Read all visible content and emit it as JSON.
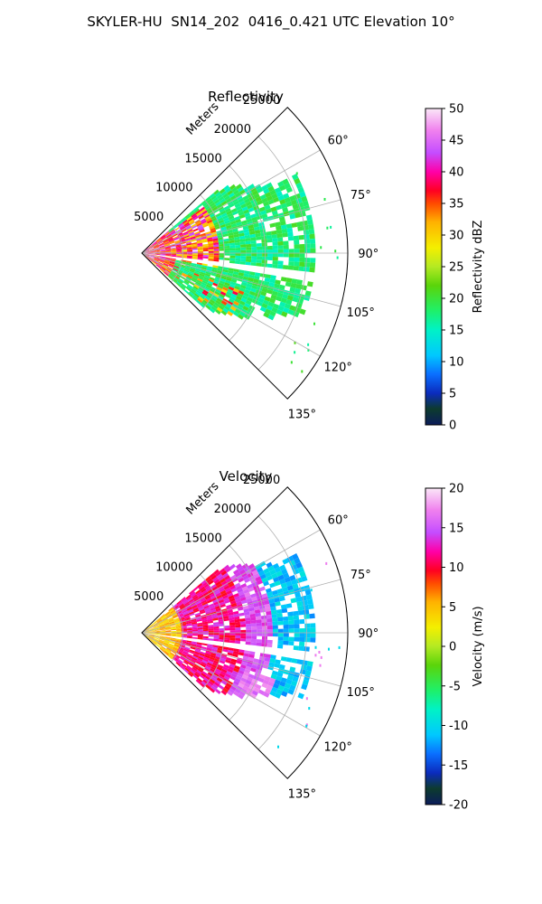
{
  "figure": {
    "title": "SKYLER-HU  SN14_202  0416_0.421 UTC Elevation 10°"
  },
  "chart_data": [
    {
      "type": "heatmap",
      "subtype": "polar-ppi-sector",
      "title": "Reflectivity",
      "range_axis_label": "Meters",
      "range_ticks": [
        5000,
        10000,
        15000,
        20000,
        25000
      ],
      "range_max": 25000,
      "azimuth_ticks": [
        "60°",
        "75°",
        "90°",
        "105°",
        "120°",
        "135°"
      ],
      "azimuth_range_deg": [
        45,
        135
      ],
      "grid": true,
      "colorbar": {
        "label": "Reflectivity dBZ",
        "min": 0,
        "max": 50,
        "ticks": [
          0,
          5,
          10,
          15,
          20,
          25,
          30,
          35,
          40,
          45,
          50
        ]
      },
      "dominant_values": "mostly 15–22 dBZ across the sector; 30–45 dBZ near radar (azimuth 55–100°, range < 8000 m); gap along ~95–100° azimuth"
    },
    {
      "type": "heatmap",
      "subtype": "polar-ppi-sector",
      "title": "Velocity",
      "range_axis_label": "Meters",
      "range_ticks": [
        5000,
        10000,
        15000,
        20000,
        25000
      ],
      "range_max": 25000,
      "azimuth_ticks": [
        "60°",
        "75°",
        "90°",
        "105°",
        "120°",
        "135°"
      ],
      "azimuth_range_deg": [
        45,
        135
      ],
      "grid": true,
      "colorbar": {
        "label": "Velocity (m/s)",
        "min": -20,
        "max": 20,
        "ticks": [
          -20,
          -15,
          -10,
          -5,
          0,
          5,
          10,
          15,
          20
        ]
      },
      "dominant_values": "+3 to +6 m/s near radar, +10 to +14 m/s at 5000–12000 m, -8 to -12 m/s beyond ~15000 m"
    }
  ],
  "colors": {
    "background": "#ffffff",
    "grid": "#b0b0b0",
    "axes": "#000000"
  }
}
